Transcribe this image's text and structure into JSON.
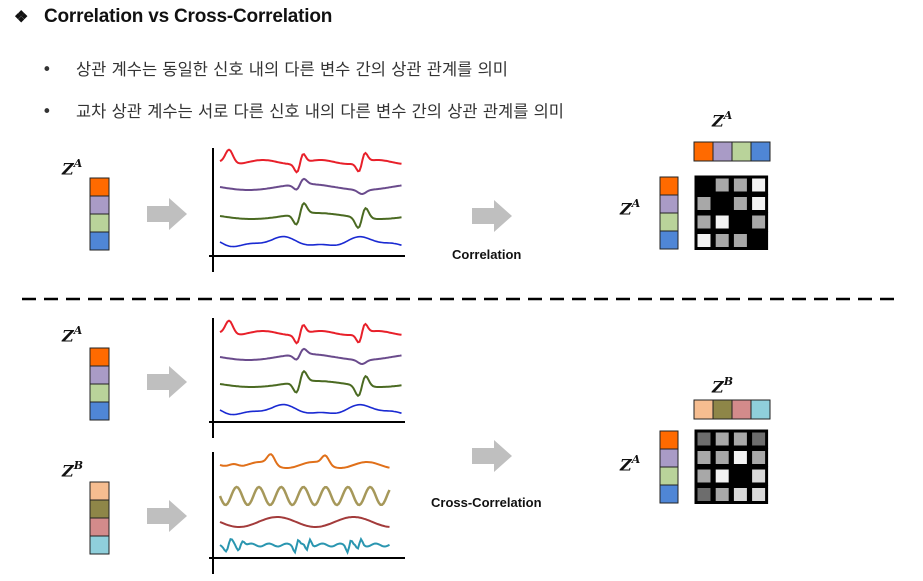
{
  "title": {
    "symbol": "❖",
    "text": "Correlation vs Cross-Correlation"
  },
  "bullets": [
    "상관 계수는 동일한 신호 내의 다른 변수 간의 상관 관계를 의미",
    "교차 상관 계수는 서로 다른 신호 내의 다른 변수 간의 상관 관계를 의미"
  ],
  "labels": {
    "za_base": "Z",
    "za_sup": "A",
    "zb_base": "Z",
    "zb_sup": "B"
  },
  "captions": {
    "correlation": "Correlation",
    "cross_correlation": "Cross-Correlation"
  },
  "colors": {
    "za": [
      "#ff6a00",
      "#a99bc6",
      "#b9d39a",
      "#4f86d6"
    ],
    "zb": [
      "#f6bd90",
      "#8e8648",
      "#d38b8b",
      "#8fcfdb"
    ],
    "signals_a": [
      "#e8202a",
      "#6a4b8c",
      "#4b6a22",
      "#1a2ad2"
    ],
    "signals_b": [
      "#e0701a",
      "#a6985a",
      "#a33b3b",
      "#2a96b0"
    ],
    "arrow": "#bfbfbf"
  },
  "matrices": {
    "correlation": [
      [
        "#000000",
        "#a8a8a8",
        "#a8a8a8",
        "#f2f2f2"
      ],
      [
        "#a8a8a8",
        "#000000",
        "#a8a8a8",
        "#f2f2f2"
      ],
      [
        "#a8a8a8",
        "#f2f2f2",
        "#000000",
        "#a8a8a8"
      ],
      [
        "#f2f2f2",
        "#a8a8a8",
        "#a8a8a8",
        "#000000"
      ]
    ],
    "cross_correlation": [
      [
        "#6d6d6d",
        "#a8a8a8",
        "#a8a8a8",
        "#6d6d6d"
      ],
      [
        "#a8a8a8",
        "#a8a8a8",
        "#f2f2f2",
        "#a8a8a8"
      ],
      [
        "#a8a8a8",
        "#f2f2f2",
        "#000000",
        "#d9d9d9"
      ],
      [
        "#6d6d6d",
        "#a8a8a8",
        "#d9d9d9",
        "#d9d9d9"
      ]
    ]
  }
}
